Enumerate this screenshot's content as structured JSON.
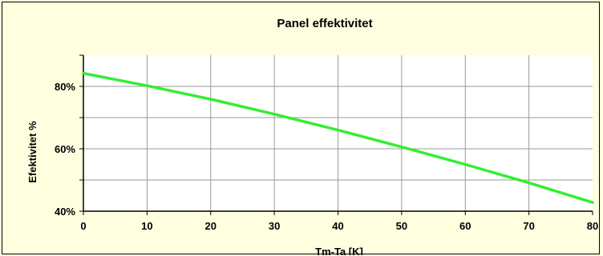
{
  "chart_data": {
    "type": "line",
    "title": "Panel effektivitet",
    "xlabel": "Tm-Ta [K]",
    "ylabel": "Efektivitet %",
    "xlim": [
      0,
      80
    ],
    "ylim": [
      40,
      90
    ],
    "x_ticks": [
      0,
      10,
      20,
      30,
      40,
      50,
      60,
      70,
      80
    ],
    "y_ticks": [
      40,
      60,
      80
    ],
    "y_tick_labels": [
      "40%",
      "60%",
      "80%"
    ],
    "grid": true,
    "legend": "none",
    "series": [
      {
        "color": "#33ee33",
        "x": [
          0,
          10,
          20,
          30,
          40,
          50,
          60,
          70,
          80
        ],
        "y": [
          84.2,
          80.2,
          75.9,
          71.1,
          66.0,
          60.6,
          55.0,
          49.1,
          42.8
        ]
      }
    ]
  }
}
